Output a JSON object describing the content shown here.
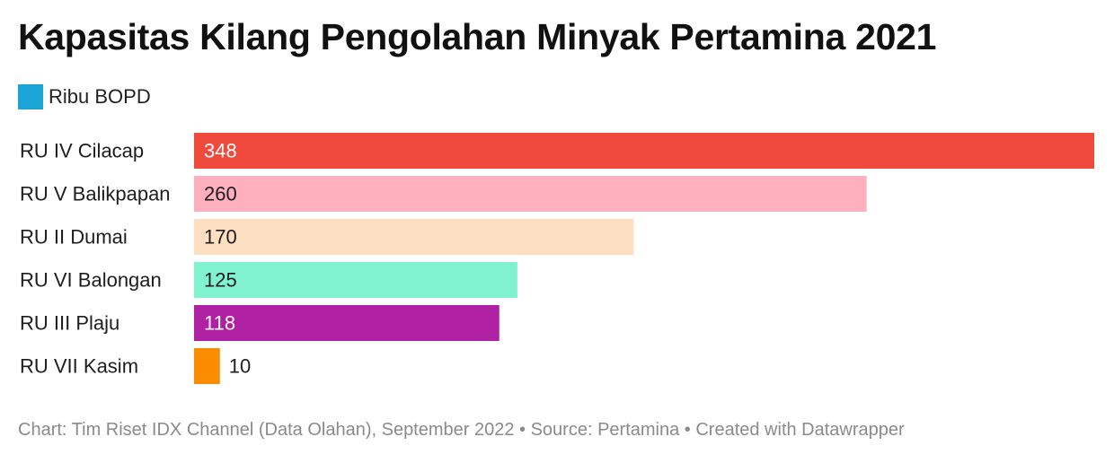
{
  "title": "Kapasitas Kilang Pengolahan Minyak Pertamina 2021",
  "legend": {
    "label": "Ribu BOPD",
    "color": "#1ba5d6"
  },
  "footer": "Chart: Tim Riset IDX Channel (Data Olahan), September 2022 • Source: Pertamina • Created with Datawrapper",
  "chart_data": {
    "type": "bar",
    "orientation": "horizontal",
    "categories": [
      "RU IV Cilacap",
      "RU V Balikpapan",
      "RU II Dumai",
      "RU VI Balongan",
      "RU III Plaju",
      "RU VII Kasim"
    ],
    "values": [
      348,
      260,
      170,
      125,
      118,
      10
    ],
    "colors": [
      "#ef4a3c",
      "#ffafbd",
      "#fddfc2",
      "#80f2cd",
      "#b020a3",
      "#fb8c00"
    ],
    "label_colors": [
      "#ffffff",
      "#1d1d1d",
      "#1d1d1d",
      "#1d1d1d",
      "#ffffff",
      "#1d1d1d"
    ],
    "series": [
      {
        "name": "Ribu BOPD",
        "values": [
          348,
          260,
          170,
          125,
          118,
          10
        ]
      }
    ],
    "xlim": [
      0,
      348
    ],
    "grid": false,
    "legend_position": "top-left"
  }
}
